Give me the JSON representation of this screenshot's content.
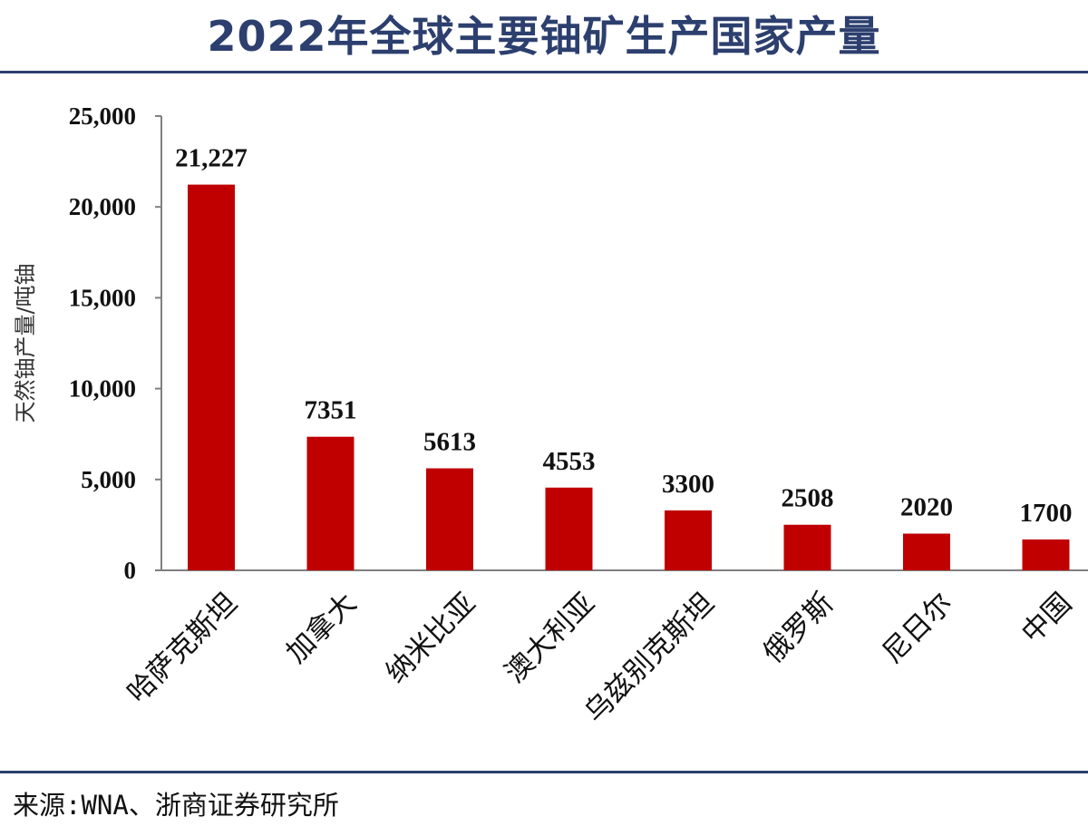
{
  "header": {
    "title": "2022年全球主要铀矿生产国家产量"
  },
  "footer": {
    "source": "来源:WNA、浙商证券研究所"
  },
  "colors": {
    "bar": "#c00000",
    "title": "#2c3f6e",
    "axis": "#7f7f7f"
  },
  "chart_data": {
    "type": "bar",
    "title": "2022年全球主要铀矿生产国家产量",
    "ylabel": "天然铀产量/吨铀",
    "xlabel": "",
    "categories": [
      "哈萨克斯坦",
      "加拿大",
      "纳米比亚",
      "澳大利亚",
      "乌兹别克斯坦",
      "俄罗斯",
      "尼日尔",
      "中国"
    ],
    "values": [
      21227,
      7351,
      5613,
      4553,
      3300,
      2508,
      2020,
      1700
    ],
    "data_labels": [
      "21,227",
      "7351",
      "5613",
      "4553",
      "3300",
      "2508",
      "2020",
      "1700"
    ],
    "ylim": [
      0,
      25000
    ],
    "yticks": [
      0,
      5000,
      10000,
      15000,
      20000,
      25000
    ],
    "ytick_labels": [
      "0",
      "5,000",
      "10,000",
      "15,000",
      "20,000",
      "25,000"
    ],
    "grid": false,
    "legend": "none"
  }
}
